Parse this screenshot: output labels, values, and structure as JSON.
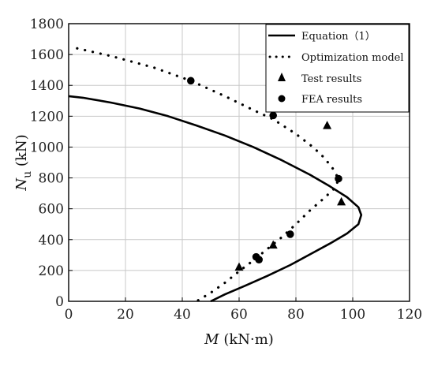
{
  "chart_data": {
    "type": "scatter",
    "xlabel_var": "M",
    "xlabel_unit": " (kN·m)",
    "ylabel_var": "N",
    "ylabel_sub": "u",
    "ylabel_unit": " (kN)",
    "xlim": [
      0,
      120
    ],
    "ylim": [
      0,
      1800
    ],
    "x_ticks": [
      0,
      20,
      40,
      60,
      80,
      100,
      120
    ],
    "y_ticks": [
      0,
      200,
      400,
      600,
      800,
      1000,
      1200,
      1400,
      1600,
      1800
    ],
    "grid": true,
    "legend_position": "top-right",
    "series": [
      {
        "name": "Equation（1）",
        "style": "solid-line",
        "color": "#000000",
        "points": [
          [
            0,
            1330
          ],
          [
            5,
            1320
          ],
          [
            15,
            1288
          ],
          [
            25,
            1250
          ],
          [
            35,
            1200
          ],
          [
            45,
            1140
          ],
          [
            55,
            1075
          ],
          [
            65,
            1000
          ],
          [
            75,
            915
          ],
          [
            85,
            820
          ],
          [
            92,
            745
          ],
          [
            98,
            675
          ],
          [
            102,
            610
          ],
          [
            103,
            560
          ],
          [
            102,
            500
          ],
          [
            98,
            440
          ],
          [
            92,
            375
          ],
          [
            85,
            305
          ],
          [
            78,
            235
          ],
          [
            70,
            165
          ],
          [
            62,
            100
          ],
          [
            55,
            45
          ],
          [
            50,
            0
          ]
        ]
      },
      {
        "name": "Optimization model",
        "style": "dotted-line",
        "color": "#000000",
        "points": [
          [
            3,
            1640
          ],
          [
            15,
            1590
          ],
          [
            30,
            1515
          ],
          [
            43,
            1430
          ],
          [
            55,
            1330
          ],
          [
            65,
            1240
          ],
          [
            72,
            1180
          ],
          [
            80,
            1085
          ],
          [
            86,
            1000
          ],
          [
            90,
            930
          ],
          [
            93,
            860
          ],
          [
            95,
            795
          ],
          [
            94,
            740
          ],
          [
            90,
            670
          ],
          [
            85,
            590
          ],
          [
            80,
            500
          ],
          [
            75,
            415
          ],
          [
            70,
            340
          ],
          [
            65,
            265
          ],
          [
            60,
            195
          ],
          [
            55,
            120
          ],
          [
            50,
            55
          ],
          [
            45,
            0
          ]
        ]
      },
      {
        "name": "Test results",
        "style": "triangle",
        "color": "#000000",
        "points": [
          [
            91,
            1140
          ],
          [
            96,
            645
          ],
          [
            72,
            365
          ],
          [
            60,
            222
          ]
        ]
      },
      {
        "name": "FEA results",
        "style": "circle",
        "color": "#000000",
        "points": [
          [
            43,
            1430
          ],
          [
            72,
            1205
          ],
          [
            95,
            795
          ],
          [
            78,
            435
          ],
          [
            66,
            288
          ],
          [
            67,
            270
          ]
        ]
      }
    ]
  }
}
